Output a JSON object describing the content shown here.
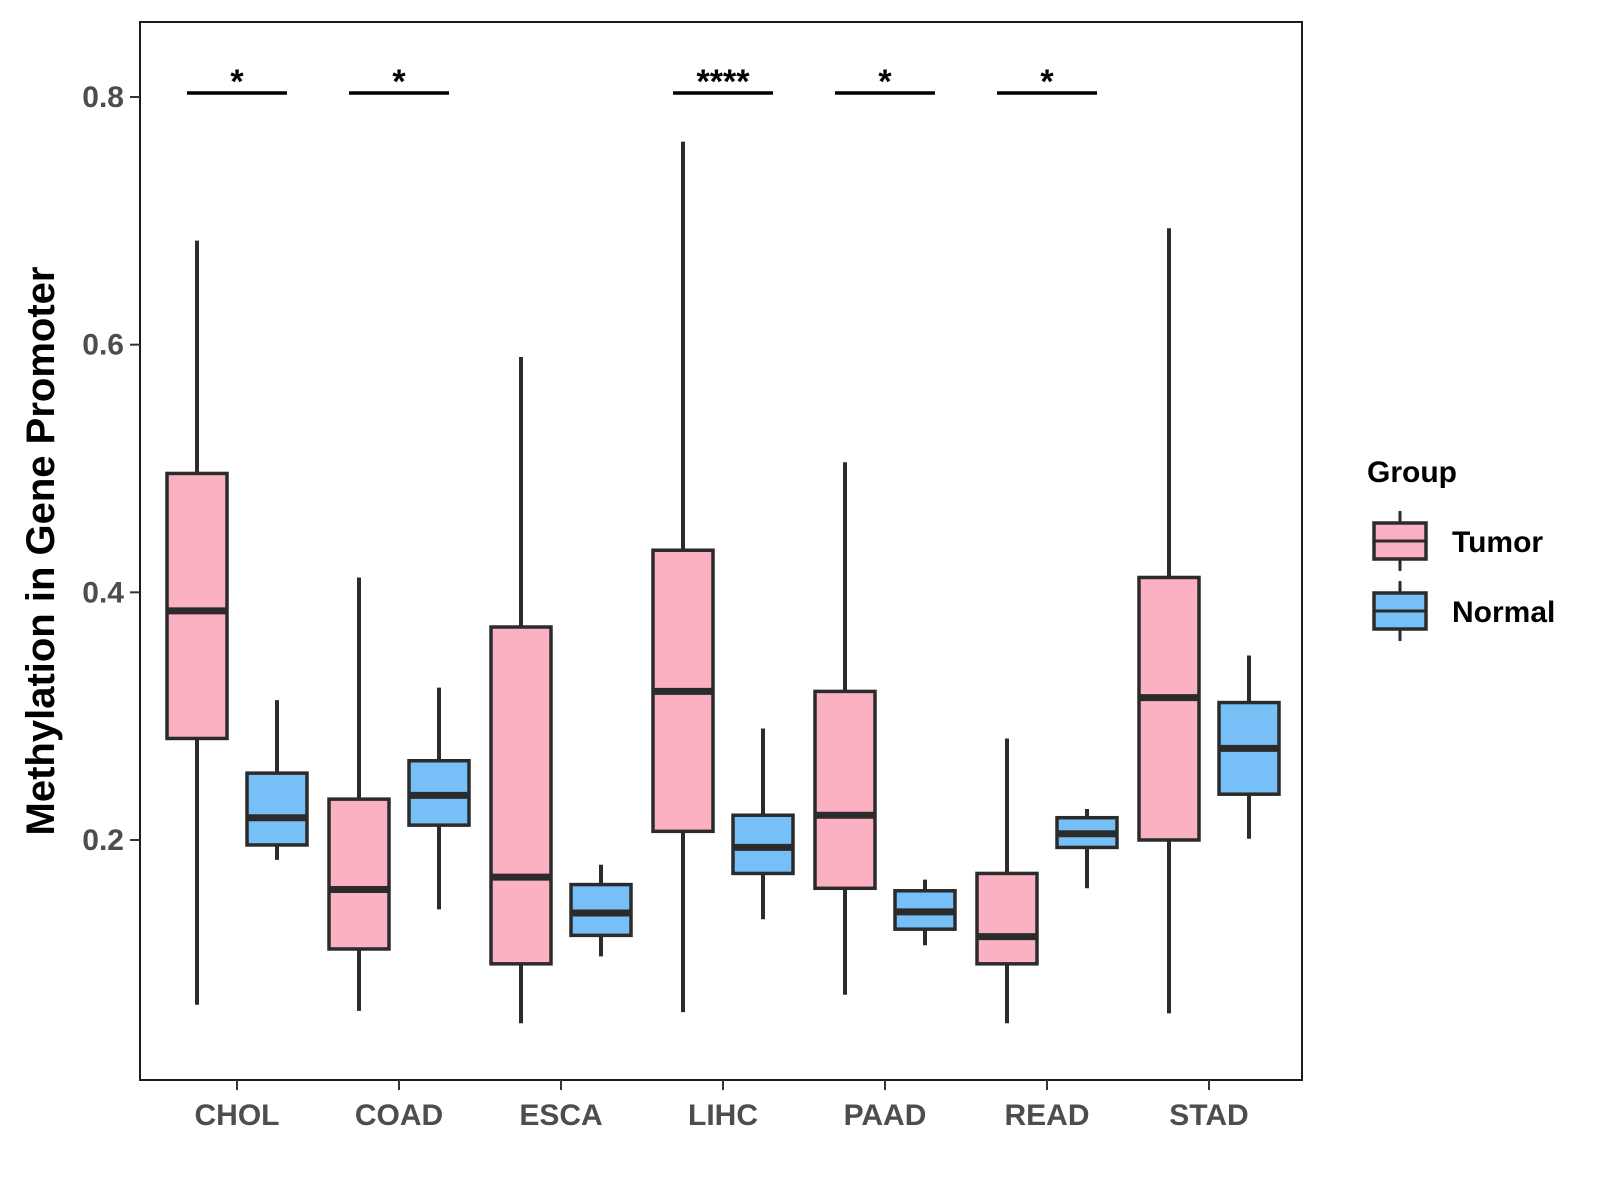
{
  "chart_data": {
    "type": "box",
    "ylabel": "Methylation in Gene Promoter",
    "xlabel": "",
    "ylim": [
      0.02,
      0.86
    ],
    "yticks": [
      0.2,
      0.4,
      0.6,
      0.8
    ],
    "ytick_labels": [
      "0.2",
      "0.4",
      "0.6",
      "0.8"
    ],
    "categories": [
      "CHOL",
      "COAD",
      "ESCA",
      "LIHC",
      "PAAD",
      "READ",
      "STAD"
    ],
    "legend": {
      "title": "Group",
      "position": "right",
      "entries": [
        {
          "name": "Tumor",
          "color": "#FCB1C3"
        },
        {
          "name": "Normal",
          "color": "#77BFF7"
        }
      ]
    },
    "series": [
      {
        "name": "Tumor",
        "color": "#FCB1C3",
        "boxes": [
          {
            "category": "CHOL",
            "min": 0.067,
            "q1": 0.282,
            "median": 0.385,
            "q3": 0.496,
            "max": 0.684
          },
          {
            "category": "COAD",
            "min": 0.062,
            "q1": 0.112,
            "median": 0.16,
            "q3": 0.233,
            "max": 0.412
          },
          {
            "category": "ESCA",
            "min": 0.052,
            "q1": 0.1,
            "median": 0.17,
            "q3": 0.372,
            "max": 0.59
          },
          {
            "category": "LIHC",
            "min": 0.061,
            "q1": 0.207,
            "median": 0.32,
            "q3": 0.434,
            "max": 0.764
          },
          {
            "category": "PAAD",
            "min": 0.075,
            "q1": 0.161,
            "median": 0.22,
            "q3": 0.32,
            "max": 0.505
          },
          {
            "category": "READ",
            "min": 0.052,
            "q1": 0.1,
            "median": 0.122,
            "q3": 0.173,
            "max": 0.282
          },
          {
            "category": "STAD",
            "min": 0.06,
            "q1": 0.2,
            "median": 0.315,
            "q3": 0.412,
            "max": 0.694
          }
        ]
      },
      {
        "name": "Normal",
        "color": "#77BFF7",
        "boxes": [
          {
            "category": "CHOL",
            "min": 0.184,
            "q1": 0.196,
            "median": 0.218,
            "q3": 0.254,
            "max": 0.313
          },
          {
            "category": "COAD",
            "min": 0.144,
            "q1": 0.212,
            "median": 0.236,
            "q3": 0.264,
            "max": 0.323
          },
          {
            "category": "ESCA",
            "min": 0.106,
            "q1": 0.123,
            "median": 0.141,
            "q3": 0.164,
            "max": 0.18
          },
          {
            "category": "LIHC",
            "min": 0.136,
            "q1": 0.173,
            "median": 0.194,
            "q3": 0.22,
            "max": 0.29
          },
          {
            "category": "PAAD",
            "min": 0.115,
            "q1": 0.128,
            "median": 0.142,
            "q3": 0.159,
            "max": 0.168
          },
          {
            "category": "READ",
            "min": 0.161,
            "q1": 0.194,
            "median": 0.205,
            "q3": 0.218,
            "max": 0.225
          },
          {
            "category": "STAD",
            "min": 0.201,
            "q1": 0.237,
            "median": 0.274,
            "q3": 0.311,
            "max": 0.349
          }
        ]
      }
    ],
    "annotations": [
      {
        "category": "CHOL",
        "label": "*"
      },
      {
        "category": "COAD",
        "label": "*"
      },
      {
        "category": "LIHC",
        "label": "****"
      },
      {
        "category": "PAAD",
        "label": "*"
      },
      {
        "category": "READ",
        "label": "*"
      }
    ],
    "grid": false
  }
}
